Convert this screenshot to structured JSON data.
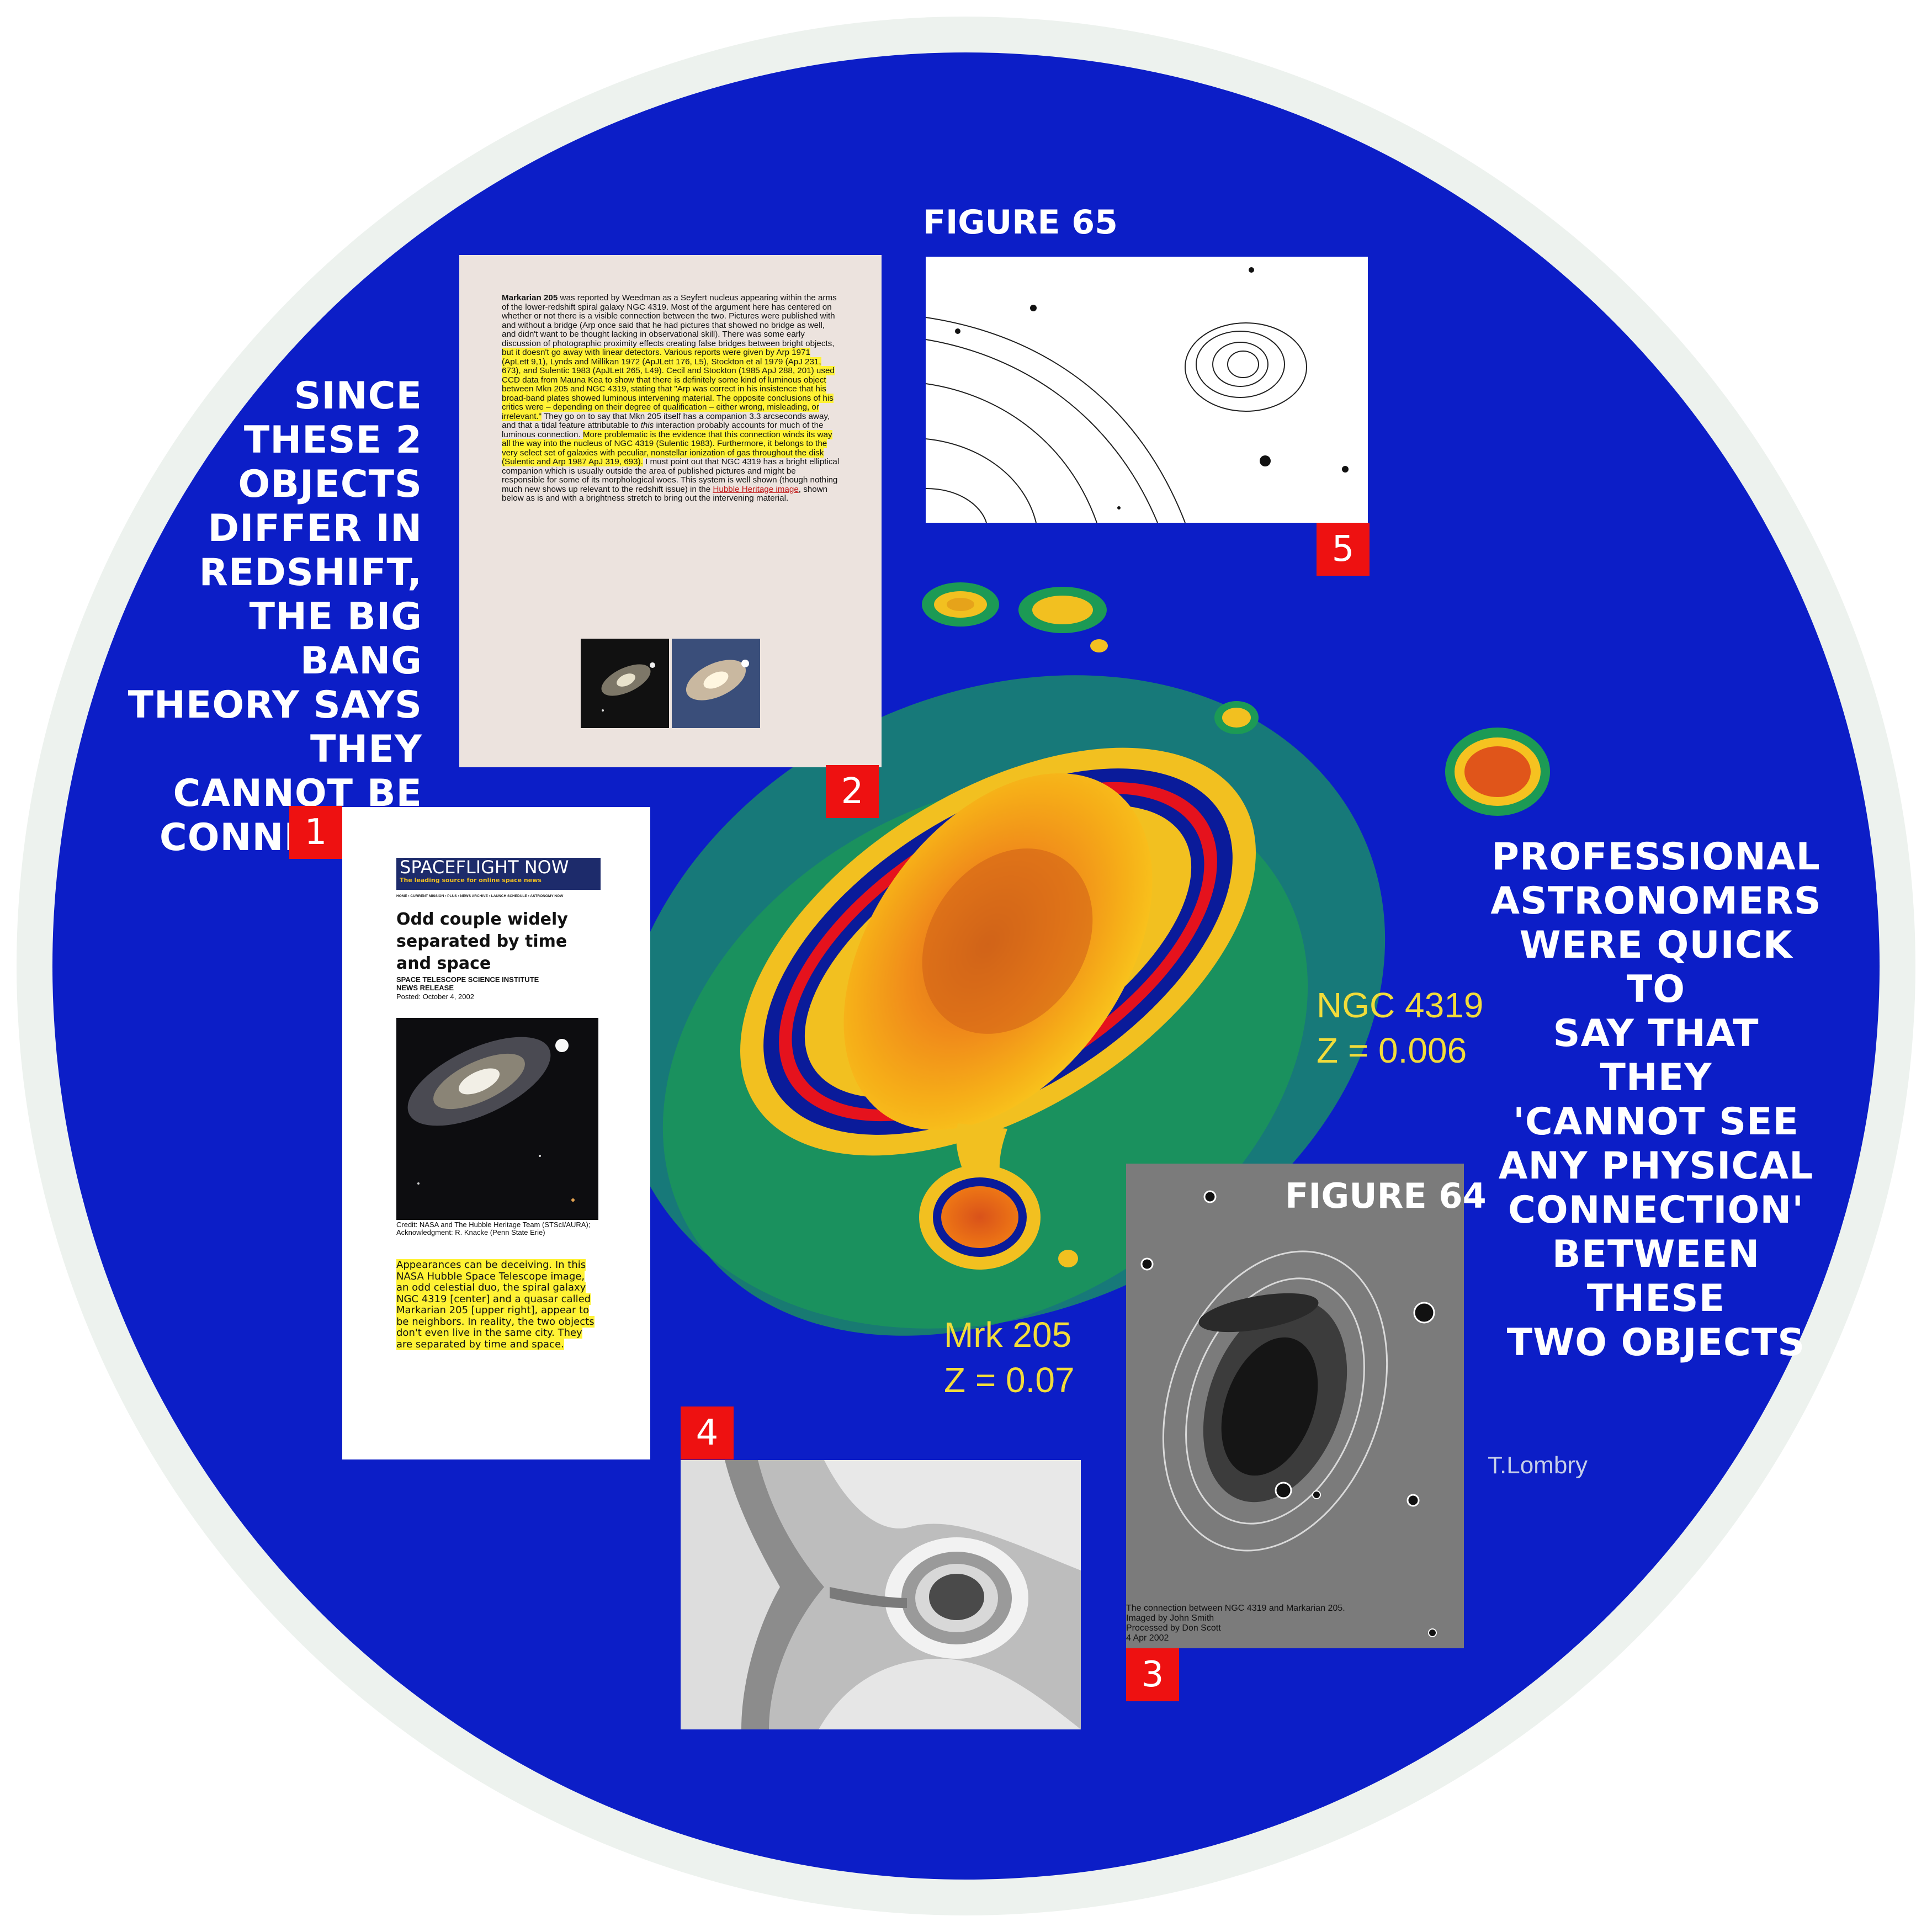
{
  "left_callout": {
    "lines": [
      "SINCE",
      "THESE 2",
      "OBJECTS",
      "DIFFER IN",
      "REDSHIFT,",
      "THE BIG BANG",
      "THEORY SAYS",
      "THEY CANNOT BE",
      "CONNECTED"
    ]
  },
  "right_callout": {
    "lines": [
      "PROFESSIONAL",
      "ASTRONOMERS",
      "WERE QUICK TO",
      "SAY THAT THEY",
      "'CANNOT SEE",
      "ANY PHYSICAL",
      "CONNECTION'",
      "BETWEEN THESE",
      "TWO OBJECTS"
    ]
  },
  "galaxy_labels": {
    "ngc_name": "NGC 4319",
    "ngc_z": "Z = 0.006",
    "mrk_name": "Mrk 205",
    "mrk_z": "Z = 0.07",
    "credit": "T.Lombry"
  },
  "badges": {
    "b1": "1",
    "b2": "2",
    "b3": "3",
    "b4": "4",
    "b5": "5"
  },
  "figure65": {
    "title": "FIGURE 65"
  },
  "figure64": {
    "title": "FIGURE 64",
    "caption": [
      "The connection between NGC 4319 and Markarian 205.",
      "Imaged by John Smith",
      "Processed by Don Scott",
      "4 Apr 2002"
    ]
  },
  "panel1": {
    "logo": "SPACEFLIGHT NOW",
    "tagline": "The leading source for online space news",
    "nav": "HOME • CURRENT MISSION • PLUS • NEWS ARCHIVE • LAUNCH SCHEDULE • ASTRONOMY NOW",
    "headline": "Odd couple widely separated by time and space",
    "source1": "SPACE TELESCOPE SCIENCE INSTITUTE",
    "source2": "NEWS RELEASE",
    "posted": "Posted: October 4, 2002",
    "credit": "Credit: NASA and The Hubble Heritage Team (STScI/AURA); Acknowledgment: R. Knacke (Penn State Erie)",
    "highlight": "Appearances can be deceiving. In this NASA Hubble Space Telescope image, an odd celestial duo, the spiral galaxy NGC 4319 [center] and a quasar called Markarian 205 [upper right], appear to be neighbors. In reality, the two objects don't even live in the same city. They are separated by time and space."
  },
  "panel2": {
    "bold_lead": "Markarian 205",
    "t1": " was reported by Weedman as a Seyfert nucleus appearing within the arms of the lower-redshift spiral galaxy NGC 4319. Most of the argument here has centered on whether or not there is a visible connection between the two. Pictures were published with and without a bridge (Arp once said that he had pictures that showed no bridge as well, and didn't want to be thought lacking in observational skill). There was some early discussion of photographic proximity effects creating false bridges between bright objects, ",
    "h1": "but it doesn't go away with linear detectors. Various reports were given by Arp 1971 (ApLett 9,1), Lynds and Millikan 1972 (ApJLett 176, L5), Stockton et al 1979 (ApJ 231, 673), and Sulentic 1983 (ApJLett 265, L49). Cecil and Stockton (1985 ApJ 288, 201) used CCD data from Mauna Kea to show that there is definitely some kind of luminous object between Mkn 205 and NGC 4319, stating that \"Arp was correct in his insistence that his broad-band plates showed luminous intervening material. The opposite conclusions of his critics were – depending on their degree of qualification – either wrong, misleading, or irrelevant.\"",
    "t2": " They go on to say that Mkn 205 itself has a companion 3.3 arcseconds away, and that a tidal feature attributable to ",
    "em": "this",
    "t3": " interaction probably accounts for much of the luminous connection. ",
    "h2": "More problematic is the evidence that this connection winds its way all the way into the nucleus of NGC 4319 (Sulentic 1983). Furthermore, it belongs to the very select set of galaxies with peculiar, nonstellar ionization of gas throughout the disk (Sulentic and Arp 1987 ApJ 319, 693).",
    "t4": " I must point out that NGC 4319 has a bright elliptical companion which is usually outside the area of published pictures and might be responsible for some of its morphological woes. This system is well shown (though nothing much new shows up relevant to the redshift issue) in the ",
    "link": "Hubble Heritage image",
    "t5": ", shown below as is and with a brightness stretch to bring out the intervening material."
  },
  "colors": {
    "disc": "#0c1ec7",
    "ring": "#edf2ee",
    "badge": "#ee1111",
    "label_yellow": "#f2dc3a",
    "highlight": "#fff235"
  }
}
